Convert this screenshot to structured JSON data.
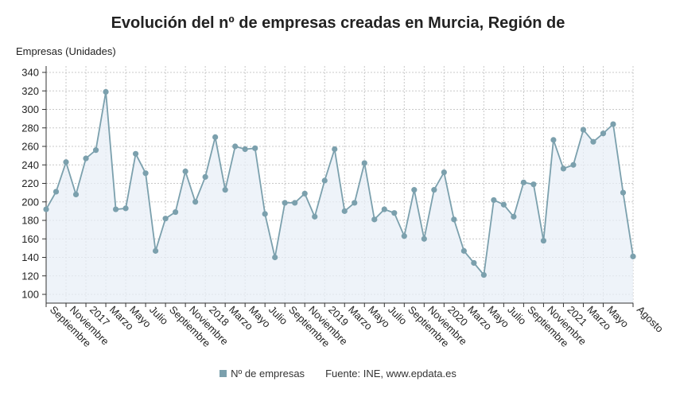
{
  "colors": {
    "line": "#7ba0ad",
    "marker": "#7ba0ad",
    "fill": "#e8eff7",
    "grid": "#c8c8c8",
    "axis": "#333333"
  },
  "legend": {
    "series_label": "Nº de empresas",
    "source": "Fuente: INE, www.epdata.es"
  },
  "chart_data": {
    "type": "line",
    "title": "Evolución del nº de empresas creadas en Murcia, Región de",
    "ylabel": "Empresas (Unidades)",
    "xlabel": "",
    "ylim": [
      100,
      340
    ],
    "yticks": [
      100,
      120,
      140,
      160,
      180,
      200,
      220,
      240,
      260,
      280,
      300,
      320,
      340
    ],
    "grid": true,
    "x_tick_labels": [
      {
        "i": 0,
        "label": "Septiembre"
      },
      {
        "i": 2,
        "label": "Noviembre"
      },
      {
        "i": 4,
        "label": "2017"
      },
      {
        "i": 6,
        "label": "Marzo"
      },
      {
        "i": 8,
        "label": "Mayo"
      },
      {
        "i": 10,
        "label": "Julio"
      },
      {
        "i": 12,
        "label": "Septiembre"
      },
      {
        "i": 14,
        "label": "Noviembre"
      },
      {
        "i": 16,
        "label": "2018"
      },
      {
        "i": 18,
        "label": "Marzo"
      },
      {
        "i": 20,
        "label": "Mayo"
      },
      {
        "i": 22,
        "label": "Julio"
      },
      {
        "i": 24,
        "label": "Septiembre"
      },
      {
        "i": 26,
        "label": "Noviembre"
      },
      {
        "i": 28,
        "label": "2019"
      },
      {
        "i": 30,
        "label": "Marzo"
      },
      {
        "i": 32,
        "label": "Mayo"
      },
      {
        "i": 34,
        "label": "Julio"
      },
      {
        "i": 36,
        "label": "Septiembre"
      },
      {
        "i": 38,
        "label": "Noviembre"
      },
      {
        "i": 40,
        "label": "2020"
      },
      {
        "i": 42,
        "label": "Marzo"
      },
      {
        "i": 44,
        "label": "Mayo"
      },
      {
        "i": 46,
        "label": "Julio"
      },
      {
        "i": 48,
        "label": "Septiembre"
      },
      {
        "i": 50,
        "label": "Noviembre"
      },
      {
        "i": 52,
        "label": "2021"
      },
      {
        "i": 54,
        "label": "Marzo"
      },
      {
        "i": 56,
        "label": "Mayo"
      },
      {
        "i": 59,
        "label": "Agosto"
      }
    ],
    "series": [
      {
        "name": "Nº de empresas",
        "values": [
          192,
          211,
          243,
          208,
          247,
          256,
          319,
          192,
          193,
          252,
          231,
          147,
          182,
          189,
          233,
          200,
          227,
          270,
          213,
          260,
          257,
          258,
          187,
          140,
          199,
          199,
          209,
          184,
          223,
          257,
          190,
          199,
          242,
          181,
          192,
          188,
          163,
          213,
          160,
          213,
          232,
          181,
          147,
          134,
          121,
          202,
          197,
          184,
          221,
          219,
          158,
          267,
          236,
          240,
          278,
          265,
          274,
          284,
          210,
          141
        ]
      }
    ]
  }
}
